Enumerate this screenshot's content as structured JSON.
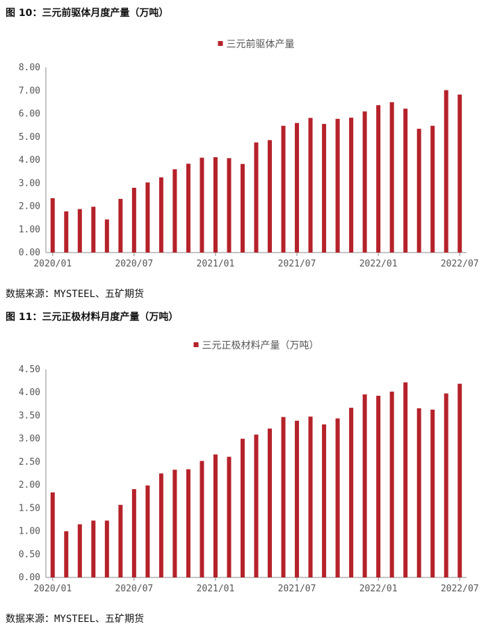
{
  "figures": [
    {
      "title": "图 10：三元前驱体月度产量（万吨）",
      "source": "数据来源：MYSTEEL、五矿期货",
      "chart_data": {
        "type": "bar",
        "title": "",
        "xlabel": "",
        "ylabel": "",
        "legend": "三元前驱体产量",
        "legend_position": "top-center",
        "color": "#b5222a",
        "ylim": [
          0,
          8
        ],
        "yticks": [
          "0.00",
          "1.00",
          "2.00",
          "3.00",
          "4.00",
          "5.00",
          "6.00",
          "7.00",
          "8.00"
        ],
        "xtick_labels": [
          "2020/01",
          "2020/07",
          "2021/01",
          "2021/07",
          "2022/01",
          "2022/07"
        ],
        "categories": [
          "2020/01",
          "2020/02",
          "2020/03",
          "2020/04",
          "2020/05",
          "2020/06",
          "2020/07",
          "2020/08",
          "2020/09",
          "2020/10",
          "2020/11",
          "2020/12",
          "2021/01",
          "2021/02",
          "2021/03",
          "2021/04",
          "2021/05",
          "2021/06",
          "2021/07",
          "2021/08",
          "2021/09",
          "2021/10",
          "2021/11",
          "2021/12",
          "2022/01",
          "2022/02",
          "2022/03",
          "2022/04",
          "2022/05",
          "2022/06",
          "2022/07"
        ],
        "values": [
          2.35,
          1.78,
          1.88,
          1.98,
          1.43,
          2.32,
          2.8,
          3.03,
          3.25,
          3.6,
          3.84,
          4.1,
          4.12,
          4.08,
          3.83,
          4.76,
          4.86,
          5.48,
          5.6,
          5.82,
          5.56,
          5.78,
          5.83,
          6.1,
          6.37,
          6.5,
          6.22,
          5.35,
          5.48,
          7.02,
          6.83
        ],
        "grid": false
      }
    },
    {
      "title": "图 11：三元正极材料月度产量（万吨）",
      "source": "数据来源：MYSTEEL、五矿期货",
      "chart_data": {
        "type": "bar",
        "title": "",
        "xlabel": "",
        "ylabel": "",
        "legend": "三元正极材料产量（万吨）",
        "legend_position": "top-center",
        "color": "#b5222a",
        "ylim": [
          0,
          4.5
        ],
        "yticks": [
          "0.00",
          "0.50",
          "1.00",
          "1.50",
          "2.00",
          "2.50",
          "3.00",
          "3.50",
          "4.00",
          "4.50"
        ],
        "xtick_labels": [
          "2020/01",
          "2020/07",
          "2021/01",
          "2021/07",
          "2022/01",
          "2022/07"
        ],
        "categories": [
          "2020/01",
          "2020/02",
          "2020/03",
          "2020/04",
          "2020/05",
          "2020/06",
          "2020/07",
          "2020/08",
          "2020/09",
          "2020/10",
          "2020/11",
          "2020/12",
          "2021/01",
          "2021/02",
          "2021/03",
          "2021/04",
          "2021/05",
          "2021/06",
          "2021/07",
          "2021/08",
          "2021/09",
          "2021/10",
          "2021/11",
          "2021/12",
          "2022/01",
          "2022/02",
          "2022/03",
          "2022/04",
          "2022/05",
          "2022/06",
          "2022/07"
        ],
        "values": [
          1.84,
          1.0,
          1.15,
          1.23,
          1.23,
          1.57,
          1.91,
          1.99,
          2.25,
          2.33,
          2.34,
          2.52,
          2.66,
          2.61,
          3.0,
          3.09,
          3.22,
          3.47,
          3.39,
          3.48,
          3.31,
          3.44,
          3.67,
          3.96,
          3.93,
          4.02,
          4.22,
          3.66,
          3.63,
          3.98,
          4.19
        ],
        "grid": false
      }
    }
  ]
}
